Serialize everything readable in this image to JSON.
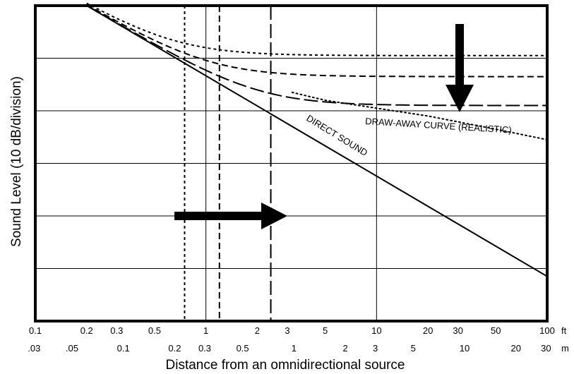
{
  "chart_data": {
    "type": "line",
    "xlabel": "Distance from an omnidirectional source",
    "ylabel": "Sound Level (10 dB/division)",
    "x_scale": "log",
    "xlim_ft": [
      0.1,
      100
    ],
    "y_divisions": 6,
    "ft_ticks": [
      {
        "value": 0.1,
        "label": "0.1"
      },
      {
        "value": 0.2,
        "label": "0.2"
      },
      {
        "value": 0.3,
        "label": "0.3"
      },
      {
        "value": 0.5,
        "label": "0.5"
      },
      {
        "value": 1,
        "label": "1"
      },
      {
        "value": 2,
        "label": "2"
      },
      {
        "value": 3,
        "label": "3"
      },
      {
        "value": 5,
        "label": "5"
      },
      {
        "value": 10,
        "label": "10"
      },
      {
        "value": 20,
        "label": "20"
      },
      {
        "value": 30,
        "label": "30"
      },
      {
        "value": 50,
        "label": "50"
      },
      {
        "value": 100,
        "label": "100"
      }
    ],
    "m_ticks": [
      {
        "value": 0.03,
        "label": ".03"
      },
      {
        "value": 0.05,
        "label": ".05"
      },
      {
        "value": 0.1,
        "label": "0.1"
      },
      {
        "value": 0.2,
        "label": "0.2"
      },
      {
        "value": 0.3,
        "label": "0.3"
      },
      {
        "value": 0.5,
        "label": "0.5"
      },
      {
        "value": 1,
        "label": "1"
      },
      {
        "value": 2,
        "label": "2"
      },
      {
        "value": 3,
        "label": "3"
      },
      {
        "value": 5,
        "label": "5"
      },
      {
        "value": 10,
        "label": "10"
      },
      {
        "value": 20,
        "label": "20"
      },
      {
        "value": 30,
        "label": "30"
      }
    ],
    "unit_ft": "ft",
    "unit_m": "m",
    "direct_sound": {
      "label": "DIRECT SOUND",
      "points": [
        [
          0.2,
          6
        ],
        [
          100,
          0.85
        ]
      ]
    },
    "reverberant_curves": [
      {
        "style": "short-dash",
        "level": 5.05,
        "critical_distance_ft": 0.75
      },
      {
        "style": "medium-dash",
        "level": 4.65,
        "critical_distance_ft": 1.2
      },
      {
        "style": "long-dash",
        "level": 4.1,
        "critical_distance_ft": 2.4
      }
    ],
    "draw_away_curve": {
      "label": "DRAW-AWAY CURVE (REALISTIC)",
      "style": "dotted",
      "points": [
        [
          3.2,
          4.35
        ],
        [
          5,
          4.2
        ],
        [
          10,
          4.05
        ],
        [
          20,
          3.9
        ],
        [
          50,
          3.65
        ],
        [
          100,
          3.45
        ]
      ]
    }
  }
}
